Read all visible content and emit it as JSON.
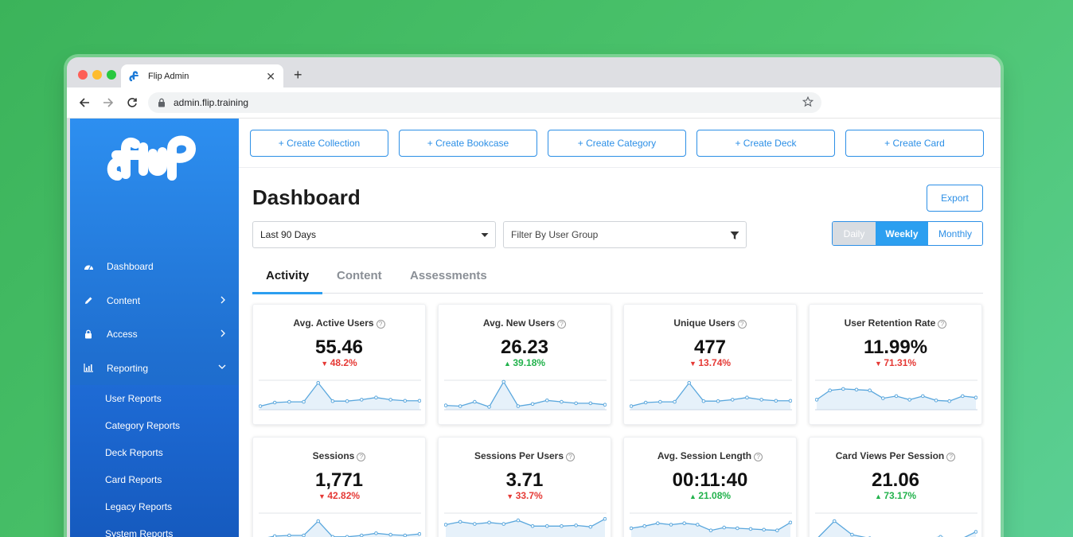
{
  "browser": {
    "tab_title": "Flip Admin",
    "url": "admin.flip.training"
  },
  "create_buttons": [
    "+ Create Collection",
    "+ Create Bookcase",
    "+ Create Category",
    "+ Create Deck",
    "+ Create Card"
  ],
  "sidebar": {
    "items": [
      {
        "label": "Dashboard",
        "icon": "gauge-icon"
      },
      {
        "label": "Content",
        "icon": "pencil-icon"
      },
      {
        "label": "Access",
        "icon": "lock-icon"
      },
      {
        "label": "Reporting",
        "icon": "bar-chart-icon"
      }
    ],
    "sub_items": [
      "User Reports",
      "Category Reports",
      "Deck Reports",
      "Card Reports",
      "Legacy Reports",
      "System Reports"
    ]
  },
  "page": {
    "title": "Dashboard",
    "export_label": "Export",
    "date_range": "Last 90 Days",
    "filter_placeholder": "Filter By User Group",
    "period": {
      "daily": "Daily",
      "weekly": "Weekly",
      "monthly": "Monthly",
      "selected": "Weekly"
    },
    "tabs": [
      "Activity",
      "Content",
      "Assessments"
    ],
    "active_tab": "Activity"
  },
  "colors": {
    "accent": "#2c8fe6",
    "down": "#e53935",
    "up": "#22b24c",
    "spark_line": "#5aa7dd"
  },
  "metrics": [
    {
      "title": "Avg. Active Users",
      "value": "55.46",
      "change": "48.2%",
      "direction": "down",
      "series": [
        1.0,
        2.0,
        2.2,
        2.2,
        7.5,
        2.4,
        2.4,
        2.8,
        3.4,
        2.8,
        2.5,
        2.5
      ]
    },
    {
      "title": "Avg. New Users",
      "value": "26.23",
      "change": "39.18%",
      "direction": "up",
      "series": [
        1.2,
        1.0,
        2.2,
        0.8,
        7.8,
        1.0,
        1.6,
        2.6,
        2.2,
        1.8,
        1.8,
        1.4
      ]
    },
    {
      "title": "Unique Users",
      "value": "477",
      "change": "13.74%",
      "direction": "down",
      "series": [
        1.0,
        2.0,
        2.2,
        2.2,
        7.5,
        2.4,
        2.4,
        2.8,
        3.4,
        2.8,
        2.5,
        2.5
      ]
    },
    {
      "title": "User Retention Rate",
      "value": "11.99%",
      "change": "71.31%",
      "direction": "down",
      "series": [
        2.8,
        5.4,
        5.8,
        5.6,
        5.4,
        3.2,
        3.8,
        2.8,
        3.8,
        2.6,
        2.4,
        3.8,
        3.4
      ]
    },
    {
      "title": "Sessions",
      "value": "1,771",
      "change": "42.82%",
      "direction": "down",
      "series": [
        1.0,
        1.8,
        2.0,
        2.0,
        6.0,
        1.6,
        1.6,
        2.0,
        2.6,
        2.2,
        2.0,
        2.4
      ]
    },
    {
      "title": "Sessions Per Users",
      "value": "3.71",
      "change": "33.7%",
      "direction": "down",
      "series": [
        5.0,
        5.8,
        5.2,
        5.6,
        5.2,
        6.2,
        4.6,
        4.6,
        4.6,
        4.8,
        4.4,
        6.6
      ]
    },
    {
      "title": "Avg. Session Length",
      "value": "00:11:40",
      "change": "21.08%",
      "direction": "up",
      "series": [
        4.0,
        4.6,
        5.4,
        5.0,
        5.4,
        5.0,
        3.4,
        4.2,
        4.0,
        3.8,
        3.6,
        3.4,
        5.6
      ]
    },
    {
      "title": "Card Views Per Session",
      "value": "21.06",
      "change": "73.17%",
      "direction": "up",
      "series": [
        1.0,
        6.0,
        2.2,
        1.2,
        1.0,
        0.6,
        0.8,
        1.6,
        0.6,
        3.0
      ]
    }
  ]
}
